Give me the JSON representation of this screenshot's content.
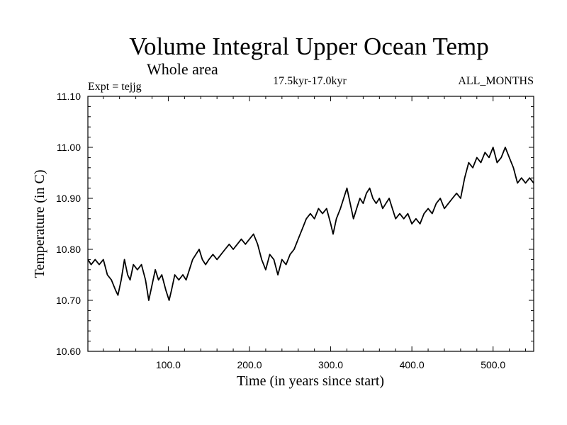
{
  "chart_data": {
    "type": "line",
    "title": "Volume Integral Upper Ocean Temp",
    "subtitle": "Whole area",
    "experiment": "Expt = tejjg",
    "period": "17.5kyr-17.0kyr",
    "months": "ALL_MONTHS",
    "xlabel": "Time (in years since start)",
    "ylabel": "Temperature (in C)",
    "xlim": [
      1,
      550
    ],
    "ylim": [
      10.6,
      11.1
    ],
    "x_ticks": [
      100,
      200,
      300,
      400,
      500
    ],
    "x_tick_labels": [
      "100.0",
      "200.0",
      "300.0",
      "400.0",
      "500.0"
    ],
    "y_ticks": [
      10.6,
      10.7,
      10.8,
      10.9,
      11.0,
      11.1
    ],
    "y_tick_labels": [
      "10.60",
      "10.70",
      "10.80",
      "10.90",
      "11.00",
      "11.10"
    ],
    "grid": false,
    "series": [
      {
        "name": "tejjg",
        "color": "#000000",
        "points": [
          [
            1,
            10.78
          ],
          [
            5,
            10.77
          ],
          [
            10,
            10.78
          ],
          [
            15,
            10.77
          ],
          [
            20,
            10.78
          ],
          [
            25,
            10.75
          ],
          [
            30,
            10.74
          ],
          [
            35,
            10.72
          ],
          [
            38,
            10.71
          ],
          [
            42,
            10.74
          ],
          [
            46,
            10.78
          ],
          [
            50,
            10.75
          ],
          [
            53,
            10.74
          ],
          [
            57,
            10.77
          ],
          [
            62,
            10.76
          ],
          [
            67,
            10.77
          ],
          [
            72,
            10.74
          ],
          [
            76,
            10.7
          ],
          [
            80,
            10.73
          ],
          [
            84,
            10.76
          ],
          [
            88,
            10.74
          ],
          [
            92,
            10.75
          ],
          [
            97,
            10.72
          ],
          [
            101,
            10.7
          ],
          [
            104,
            10.72
          ],
          [
            108,
            10.75
          ],
          [
            113,
            10.74
          ],
          [
            118,
            10.75
          ],
          [
            122,
            10.74
          ],
          [
            126,
            10.76
          ],
          [
            130,
            10.78
          ],
          [
            134,
            10.79
          ],
          [
            138,
            10.8
          ],
          [
            142,
            10.78
          ],
          [
            146,
            10.77
          ],
          [
            150,
            10.78
          ],
          [
            155,
            10.79
          ],
          [
            160,
            10.78
          ],
          [
            165,
            10.79
          ],
          [
            170,
            10.8
          ],
          [
            175,
            10.81
          ],
          [
            180,
            10.8
          ],
          [
            185,
            10.81
          ],
          [
            190,
            10.82
          ],
          [
            195,
            10.81
          ],
          [
            200,
            10.82
          ],
          [
            205,
            10.83
          ],
          [
            210,
            10.81
          ],
          [
            215,
            10.78
          ],
          [
            220,
            10.76
          ],
          [
            225,
            10.79
          ],
          [
            230,
            10.78
          ],
          [
            235,
            10.75
          ],
          [
            240,
            10.78
          ],
          [
            245,
            10.77
          ],
          [
            250,
            10.79
          ],
          [
            255,
            10.8
          ],
          [
            260,
            10.82
          ],
          [
            265,
            10.84
          ],
          [
            270,
            10.86
          ],
          [
            275,
            10.87
          ],
          [
            280,
            10.86
          ],
          [
            285,
            10.88
          ],
          [
            290,
            10.87
          ],
          [
            295,
            10.88
          ],
          [
            300,
            10.85
          ],
          [
            303,
            10.83
          ],
          [
            307,
            10.86
          ],
          [
            312,
            10.88
          ],
          [
            316,
            10.9
          ],
          [
            320,
            10.92
          ],
          [
            324,
            10.89
          ],
          [
            328,
            10.86
          ],
          [
            332,
            10.88
          ],
          [
            336,
            10.9
          ],
          [
            340,
            10.89
          ],
          [
            344,
            10.91
          ],
          [
            348,
            10.92
          ],
          [
            352,
            10.9
          ],
          [
            356,
            10.89
          ],
          [
            360,
            10.9
          ],
          [
            364,
            10.88
          ],
          [
            368,
            10.89
          ],
          [
            372,
            10.9
          ],
          [
            376,
            10.88
          ],
          [
            380,
            10.86
          ],
          [
            385,
            10.87
          ],
          [
            390,
            10.86
          ],
          [
            395,
            10.87
          ],
          [
            400,
            10.85
          ],
          [
            405,
            10.86
          ],
          [
            410,
            10.85
          ],
          [
            415,
            10.87
          ],
          [
            420,
            10.88
          ],
          [
            425,
            10.87
          ],
          [
            430,
            10.89
          ],
          [
            435,
            10.9
          ],
          [
            440,
            10.88
          ],
          [
            445,
            10.89
          ],
          [
            450,
            10.9
          ],
          [
            455,
            10.91
          ],
          [
            460,
            10.9
          ],
          [
            465,
            10.94
          ],
          [
            470,
            10.97
          ],
          [
            475,
            10.96
          ],
          [
            480,
            10.98
          ],
          [
            485,
            10.97
          ],
          [
            490,
            10.99
          ],
          [
            495,
            10.98
          ],
          [
            500,
            11.0
          ],
          [
            505,
            10.97
          ],
          [
            510,
            10.98
          ],
          [
            515,
            11.0
          ],
          [
            520,
            10.98
          ],
          [
            525,
            10.96
          ],
          [
            530,
            10.93
          ],
          [
            535,
            10.94
          ],
          [
            540,
            10.93
          ],
          [
            545,
            10.94
          ],
          [
            550,
            10.93
          ]
        ]
      }
    ]
  }
}
